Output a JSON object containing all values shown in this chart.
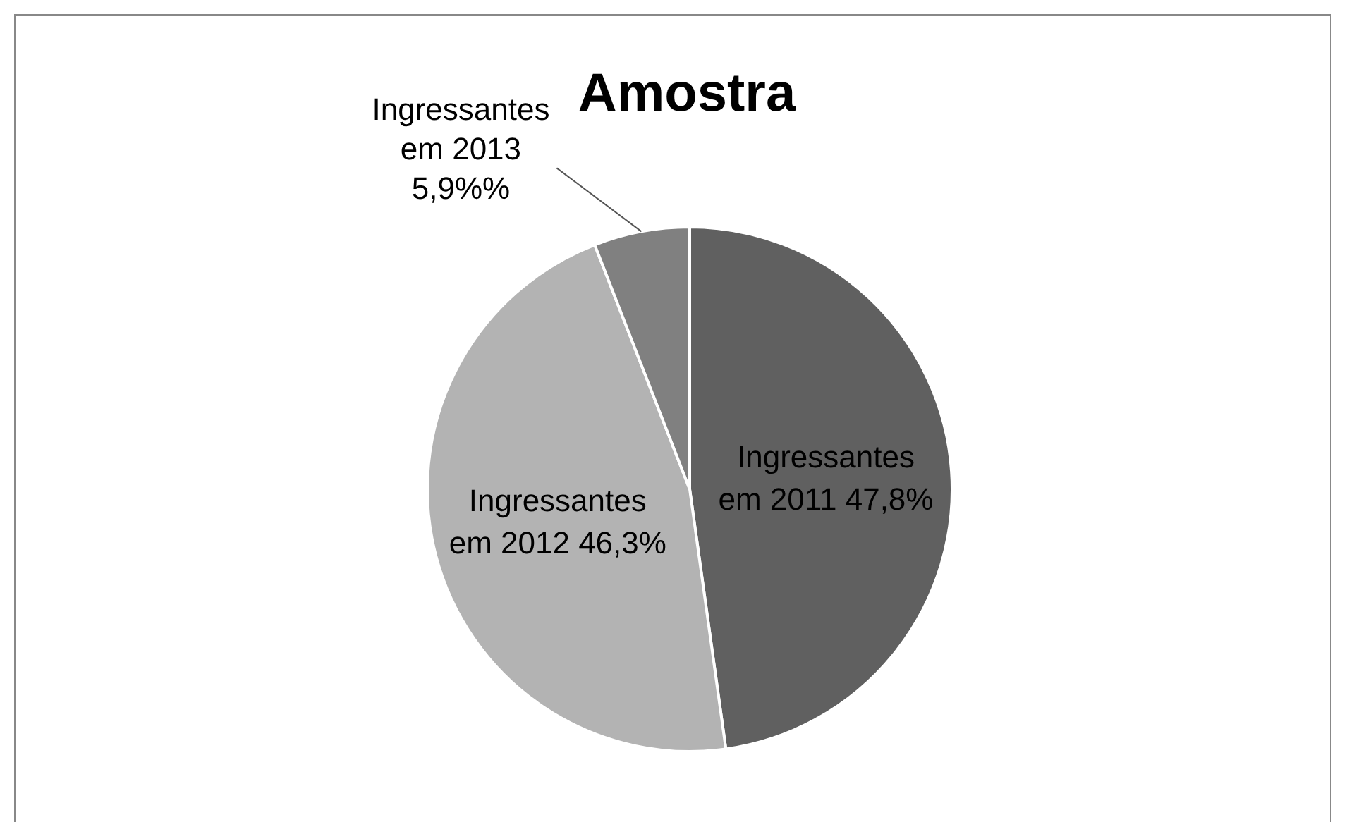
{
  "chart_data": {
    "type": "pie",
    "title": "Amostra",
    "categories": [
      "Ingressantes em 2011",
      "Ingressantes em 2012",
      "Ingressantes em 2013"
    ],
    "values": [
      47.8,
      46.3,
      5.9
    ],
    "value_labels": [
      "47,8%",
      "46,3%",
      "5,9%%"
    ],
    "colors": [
      "#606060",
      "#b3b3b3",
      "#808080"
    ],
    "legend": false
  }
}
